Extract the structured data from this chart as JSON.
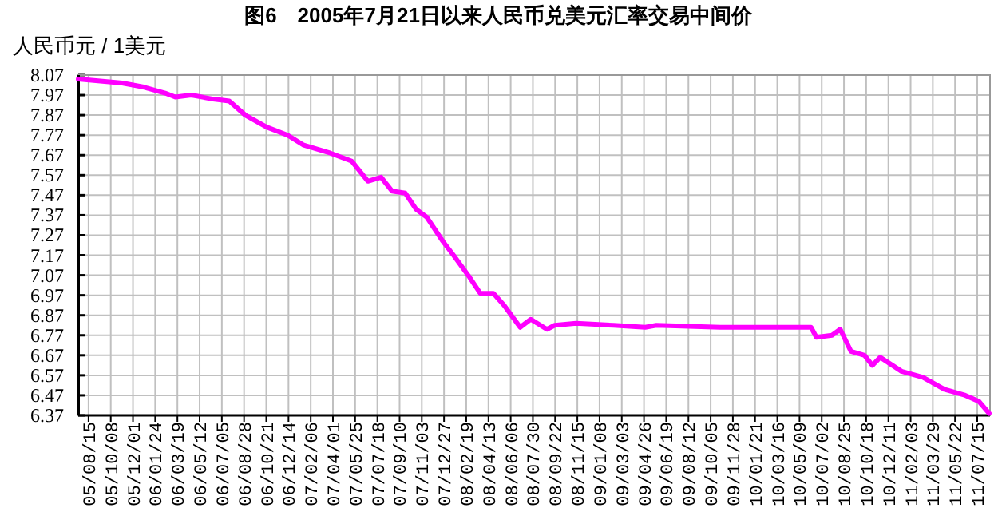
{
  "chart_data": {
    "type": "line",
    "title": "图6　2005年7月21日以来人民币兑美元汇率交易中间价",
    "ylabel": "人民币元 / 1美元",
    "xlim": [
      "2005-07-21",
      "2011-08-15"
    ],
    "ylim": [
      6.37,
      8.07
    ],
    "yticks": [
      6.37,
      6.47,
      6.57,
      6.67,
      6.77,
      6.87,
      6.97,
      7.07,
      7.17,
      7.27,
      7.37,
      7.47,
      7.57,
      7.67,
      7.77,
      7.87,
      7.97,
      8.07
    ],
    "xticks": [
      {
        "value": "2005-08-15",
        "label": "05/08/15"
      },
      {
        "value": "2005-10-08",
        "label": "05/10/08"
      },
      {
        "value": "2005-12-01",
        "label": "05/12/01"
      },
      {
        "value": "2006-01-24",
        "label": "06/01/24"
      },
      {
        "value": "2006-03-19",
        "label": "06/03/19"
      },
      {
        "value": "2006-05-12",
        "label": "06/05/12"
      },
      {
        "value": "2006-07-05",
        "label": "06/07/05"
      },
      {
        "value": "2006-08-28",
        "label": "06/08/28"
      },
      {
        "value": "2006-10-21",
        "label": "06/10/21"
      },
      {
        "value": "2006-12-14",
        "label": "06/12/14"
      },
      {
        "value": "2007-02-06",
        "label": "07/02/06"
      },
      {
        "value": "2007-04-01",
        "label": "07/04/01"
      },
      {
        "value": "2007-05-25",
        "label": "07/05/25"
      },
      {
        "value": "2007-07-18",
        "label": "07/07/18"
      },
      {
        "value": "2007-09-10",
        "label": "07/09/10"
      },
      {
        "value": "2007-11-03",
        "label": "07/11/03"
      },
      {
        "value": "2007-12-27",
        "label": "07/12/27"
      },
      {
        "value": "2008-02-19",
        "label": "08/02/19"
      },
      {
        "value": "2008-04-13",
        "label": "08/04/13"
      },
      {
        "value": "2008-06-06",
        "label": "08/06/06"
      },
      {
        "value": "2008-07-30",
        "label": "08/07/30"
      },
      {
        "value": "2008-09-22",
        "label": "08/09/22"
      },
      {
        "value": "2008-11-15",
        "label": "08/11/15"
      },
      {
        "value": "2009-01-08",
        "label": "09/01/08"
      },
      {
        "value": "2009-03-03",
        "label": "09/03/03"
      },
      {
        "value": "2009-04-26",
        "label": "09/04/26"
      },
      {
        "value": "2009-06-19",
        "label": "09/06/19"
      },
      {
        "value": "2009-08-12",
        "label": "09/08/12"
      },
      {
        "value": "2009-10-05",
        "label": "09/10/05"
      },
      {
        "value": "2009-11-28",
        "label": "09/11/28"
      },
      {
        "value": "2010-01-21",
        "label": "10/01/21"
      },
      {
        "value": "2010-03-16",
        "label": "10/03/16"
      },
      {
        "value": "2010-05-09",
        "label": "10/05/09"
      },
      {
        "value": "2010-07-02",
        "label": "10/07/02"
      },
      {
        "value": "2010-08-25",
        "label": "10/08/25"
      },
      {
        "value": "2010-10-18",
        "label": "10/10/18"
      },
      {
        "value": "2010-12-11",
        "label": "10/12/11"
      },
      {
        "value": "2011-02-03",
        "label": "11/02/03"
      },
      {
        "value": "2011-03-29",
        "label": "11/03/29"
      },
      {
        "value": "2011-05-22",
        "label": "11/05/22"
      },
      {
        "value": "2011-07-15",
        "label": "11/07/15"
      }
    ],
    "grid": true,
    "marker": "none",
    "line_style": "solid",
    "series": [
      {
        "color": "#ff00ff",
        "x": [
          "2005-07-21",
          "2005-11-05",
          "2005-12-27",
          "2006-02-17",
          "2006-03-14",
          "2006-04-22",
          "2006-06-14",
          "2006-07-23",
          "2006-08-31",
          "2006-10-22",
          "2006-12-12",
          "2007-01-20",
          "2007-03-26",
          "2007-05-17",
          "2007-06-25",
          "2007-07-27",
          "2007-08-23",
          "2007-09-24",
          "2007-10-20",
          "2007-11-15",
          "2007-12-24",
          "2008-01-19",
          "2008-02-27",
          "2008-03-24",
          "2008-04-25",
          "2008-05-21",
          "2008-06-29",
          "2008-07-25",
          "2008-09-02",
          "2008-09-21",
          "2008-11-12",
          "2009-02-11",
          "2009-04-29",
          "2009-05-26",
          "2009-10-28",
          "2010-06-06",
          "2010-06-19",
          "2010-07-27",
          "2010-08-16",
          "2010-09-11",
          "2010-10-14",
          "2010-11-02",
          "2010-11-21",
          "2011-01-12",
          "2011-03-05",
          "2011-04-26",
          "2011-06-16",
          "2011-07-19",
          "2011-08-13"
        ],
        "values": [
          8.05,
          8.03,
          8.01,
          7.98,
          7.96,
          7.97,
          7.95,
          7.94,
          7.87,
          7.81,
          7.77,
          7.72,
          7.68,
          7.64,
          7.54,
          7.56,
          7.49,
          7.48,
          7.4,
          7.36,
          7.24,
          7.17,
          7.06,
          6.98,
          6.98,
          6.92,
          6.81,
          6.85,
          6.8,
          6.82,
          6.83,
          6.82,
          6.81,
          6.82,
          6.81,
          6.81,
          6.76,
          6.77,
          6.8,
          6.69,
          6.67,
          6.62,
          6.66,
          6.59,
          6.56,
          6.5,
          6.47,
          6.44,
          6.38
        ]
      }
    ]
  }
}
